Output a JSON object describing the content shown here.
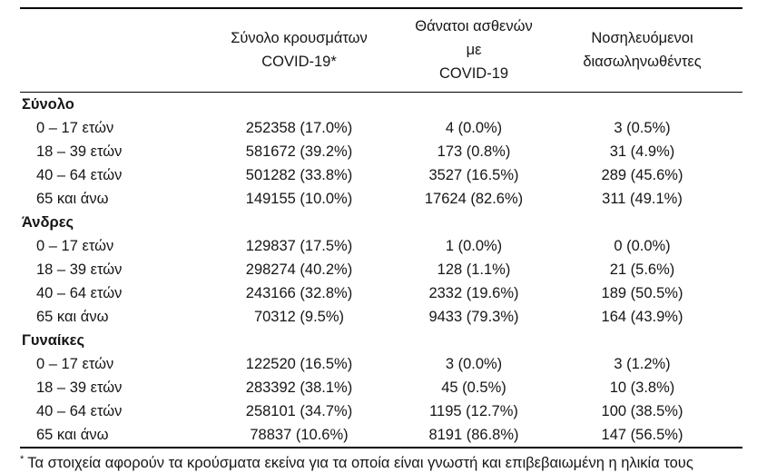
{
  "table": {
    "headers": [
      {
        "line1": "Σύνολο κρουσμάτων",
        "line2": "COVID-19*"
      },
      {
        "line1": "Θάνατοι ασθενών με",
        "line2": "COVID-19"
      },
      {
        "line1": "Νοσηλευόμενοι",
        "line2": "διασωληνωθέντες"
      }
    ],
    "sections": [
      {
        "label": "Σύνολο",
        "rows": [
          {
            "label": "0 – 17 ετών",
            "cases": "252358 (17.0%)",
            "deaths": "4 (0.0%)",
            "intubated": "3 (0.5%)"
          },
          {
            "label": "18 – 39 ετών",
            "cases": "581672 (39.2%)",
            "deaths": "173 (0.8%)",
            "intubated": "31 (4.9%)"
          },
          {
            "label": "40 – 64 ετών",
            "cases": "501282 (33.8%)",
            "deaths": "3527 (16.5%)",
            "intubated": "289 (45.6%)"
          },
          {
            "label": "65 και άνω",
            "cases": "149155 (10.0%)",
            "deaths": "17624 (82.6%)",
            "intubated": "311 (49.1%)"
          }
        ]
      },
      {
        "label": "Άνδρες",
        "rows": [
          {
            "label": "0 – 17 ετών",
            "cases": "129837 (17.5%)",
            "deaths": "1 (0.0%)",
            "intubated": "0 (0.0%)"
          },
          {
            "label": "18 – 39 ετών",
            "cases": "298274 (40.2%)",
            "deaths": "128 (1.1%)",
            "intubated": "21 (5.6%)"
          },
          {
            "label": "40 – 64 ετών",
            "cases": "243166 (32.8%)",
            "deaths": "2332 (19.6%)",
            "intubated": "189 (50.5%)"
          },
          {
            "label": "65 και άνω",
            "cases": "70312 (9.5%)",
            "deaths": "9433 (79.3%)",
            "intubated": "164 (43.9%)"
          }
        ]
      },
      {
        "label": "Γυναίκες",
        "rows": [
          {
            "label": "0 – 17 ετών",
            "cases": "122520 (16.5%)",
            "deaths": "3 (0.0%)",
            "intubated": "3 (1.2%)"
          },
          {
            "label": "18 – 39 ετών",
            "cases": "283392 (38.1%)",
            "deaths": "45 (0.5%)",
            "intubated": "10 (3.8%)"
          },
          {
            "label": "40 – 64 ετών",
            "cases": "258101 (34.7%)",
            "deaths": "1195 (12.7%)",
            "intubated": "100 (38.5%)"
          },
          {
            "label": "65 και άνω",
            "cases": "78837 (10.6%)",
            "deaths": "8191 (86.8%)",
            "intubated": "147 (56.5%)"
          }
        ]
      }
    ],
    "footnote": {
      "marker": "*",
      "text": "Τα στοιχεία αφορούν τα κρούσματα εκείνα για τα οποία είναι γνωστή και επιβεβαιωμένη η ηλικία τους"
    }
  }
}
